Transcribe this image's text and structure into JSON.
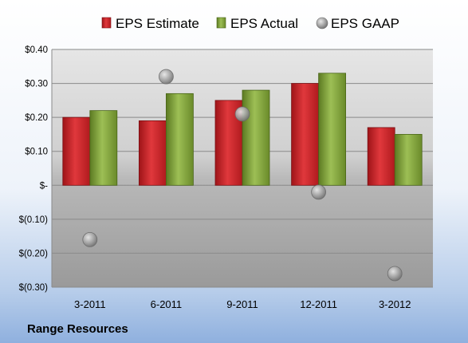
{
  "company": "Range Resources",
  "colors": {
    "estimate": "#d7262b",
    "actual": "#7fa03a",
    "gaap": "#9a9a9a"
  },
  "chart_data": {
    "type": "bar",
    "categories": [
      "3-2011",
      "6-2011",
      "9-2011",
      "12-2011",
      "3-2012"
    ],
    "series": [
      {
        "name": "EPS Estimate",
        "kind": "bar",
        "values": [
          0.2,
          0.19,
          0.25,
          0.3,
          0.17
        ]
      },
      {
        "name": "EPS Actual",
        "kind": "bar",
        "values": [
          0.22,
          0.27,
          0.28,
          0.33,
          0.15
        ]
      },
      {
        "name": "EPS GAAP",
        "kind": "scatter",
        "values": [
          -0.16,
          0.32,
          0.21,
          -0.02,
          -0.26
        ]
      }
    ],
    "yticks": [
      0.4,
      0.3,
      0.2,
      0.1,
      0,
      -0.1,
      -0.2,
      -0.3
    ],
    "ytick_labels": [
      "$0.40",
      "$0.30",
      "$0.20",
      "$0.10",
      "$-",
      "$(0.10)",
      "$(0.20)",
      "$(0.30)"
    ],
    "ylim": [
      -0.3,
      0.4
    ],
    "grid": true,
    "legend_position": "top"
  }
}
